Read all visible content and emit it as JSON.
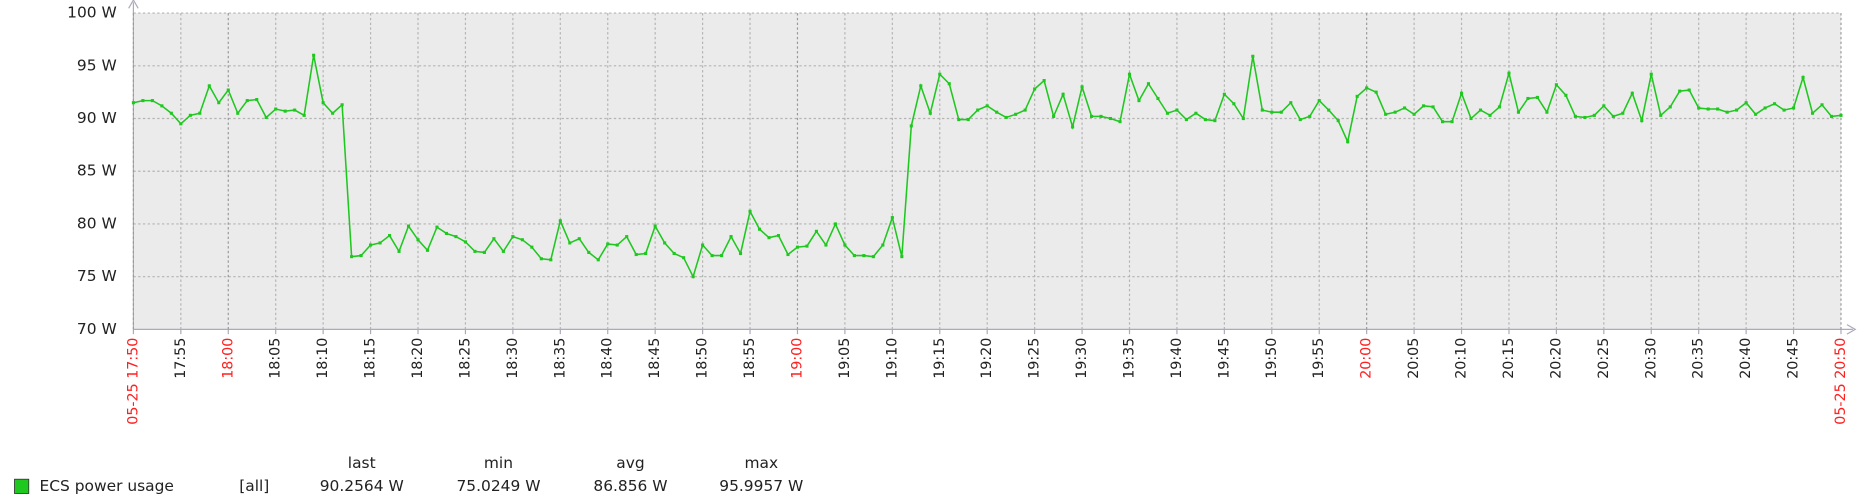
{
  "chart_data": {
    "type": "line",
    "x": [
      "17:50",
      "17:51",
      "17:52",
      "17:53",
      "17:54",
      "17:55",
      "17:56",
      "17:57",
      "17:58",
      "17:59",
      "18:00",
      "18:01",
      "18:02",
      "18:03",
      "18:04",
      "18:05",
      "18:06",
      "18:07",
      "18:08",
      "18:09",
      "18:10",
      "18:11",
      "18:12",
      "18:13",
      "18:14",
      "18:15",
      "18:16",
      "18:17",
      "18:18",
      "18:19",
      "18:20",
      "18:21",
      "18:22",
      "18:23",
      "18:24",
      "18:25",
      "18:26",
      "18:27",
      "18:28",
      "18:29",
      "18:30",
      "18:31",
      "18:32",
      "18:33",
      "18:34",
      "18:35",
      "18:36",
      "18:37",
      "18:38",
      "18:39",
      "18:40",
      "18:41",
      "18:42",
      "18:43",
      "18:44",
      "18:45",
      "18:46",
      "18:47",
      "18:48",
      "18:49",
      "18:50",
      "18:51",
      "18:52",
      "18:53",
      "18:54",
      "18:55",
      "18:56",
      "18:57",
      "18:58",
      "18:59",
      "19:00",
      "19:01",
      "19:02",
      "19:03",
      "19:04",
      "19:05",
      "19:06",
      "19:07",
      "19:08",
      "19:09",
      "19:10",
      "19:11",
      "19:12",
      "19:13",
      "19:14",
      "19:15",
      "19:16",
      "19:17",
      "19:18",
      "19:19",
      "19:20",
      "19:21",
      "19:22",
      "19:23",
      "19:24",
      "19:25",
      "19:26",
      "19:27",
      "19:28",
      "19:29",
      "19:30",
      "19:31",
      "19:32",
      "19:33",
      "19:34",
      "19:35",
      "19:36",
      "19:37",
      "19:38",
      "19:39",
      "19:40",
      "19:41",
      "19:42",
      "19:43",
      "19:44",
      "19:45",
      "19:46",
      "19:47",
      "19:48",
      "19:49",
      "19:50",
      "19:51",
      "19:52",
      "19:53",
      "19:54",
      "19:55",
      "19:56",
      "19:57",
      "19:58",
      "19:59",
      "20:00",
      "20:01",
      "20:02",
      "20:03",
      "20:04",
      "20:05",
      "20:06",
      "20:07",
      "20:08",
      "20:09",
      "20:10",
      "20:11",
      "20:12",
      "20:13",
      "20:14",
      "20:15",
      "20:16",
      "20:17",
      "20:18",
      "20:19",
      "20:20",
      "20:21",
      "20:22",
      "20:23",
      "20:24",
      "20:25",
      "20:26",
      "20:27",
      "20:28",
      "20:29",
      "20:30",
      "20:31",
      "20:32",
      "20:33",
      "20:34",
      "20:35",
      "20:36",
      "20:37",
      "20:38",
      "20:39",
      "20:40",
      "20:41",
      "20:42",
      "20:43",
      "20:44",
      "20:45",
      "20:46",
      "20:47",
      "20:48",
      "20:49",
      "20:50"
    ],
    "series": [
      {
        "name": "ECS power usage",
        "color": "#1ec81e",
        "values": [
          91.5,
          91.7,
          91.7,
          91.2,
          90.5,
          89.5,
          90.3,
          90.5,
          93.1,
          91.5,
          92.7,
          90.5,
          91.7,
          91.8,
          90.1,
          90.9,
          90.7,
          90.8,
          90.3,
          96.0,
          91.5,
          90.5,
          91.3,
          76.9,
          77.0,
          78.0,
          78.2,
          78.9,
          77.4,
          79.8,
          78.5,
          77.5,
          79.7,
          79.1,
          78.8,
          78.3,
          77.4,
          77.3,
          78.6,
          77.4,
          78.8,
          78.5,
          77.8,
          76.7,
          76.6,
          80.3,
          78.2,
          78.6,
          77.3,
          76.6,
          78.1,
          78.0,
          78.8,
          77.1,
          77.2,
          79.8,
          78.2,
          77.2,
          76.8,
          75.0,
          78.0,
          77.0,
          77.0,
          78.8,
          77.2,
          81.2,
          79.5,
          78.7,
          78.9,
          77.1,
          77.8,
          77.9,
          79.3,
          78.0,
          80.0,
          78.0,
          77.0,
          77.0,
          76.9,
          78.0,
          80.6,
          76.9,
          89.3,
          93.1,
          90.5,
          94.2,
          93.3,
          89.9,
          89.9,
          90.8,
          91.2,
          90.6,
          90.1,
          90.4,
          90.8,
          92.8,
          93.6,
          90.2,
          92.3,
          89.2,
          93.0,
          90.2,
          90.2,
          90.0,
          89.7,
          94.2,
          91.7,
          93.3,
          91.9,
          90.5,
          90.8,
          89.9,
          90.5,
          89.9,
          89.8,
          92.3,
          91.4,
          90.0,
          95.9,
          90.8,
          90.6,
          90.6,
          91.5,
          89.9,
          90.2,
          91.7,
          90.8,
          89.8,
          87.8,
          92.1,
          92.9,
          92.5,
          90.4,
          90.6,
          91.0,
          90.4,
          91.2,
          91.1,
          89.7,
          89.7,
          92.4,
          90.0,
          90.8,
          90.3,
          91.1,
          94.3,
          90.6,
          91.9,
          92.0,
          90.6,
          93.2,
          92.2,
          90.2,
          90.1,
          90.3,
          91.2,
          90.2,
          90.5,
          92.4,
          89.8,
          94.2,
          90.3,
          91.1,
          92.6,
          92.7,
          91.0,
          90.9,
          90.9,
          90.6,
          90.8,
          91.5,
          90.4,
          91.0,
          91.4,
          90.8,
          91.0,
          93.9,
          90.5,
          91.3,
          90.2,
          90.3
        ]
      }
    ],
    "xlim": [
      "17:50",
      "20:50"
    ],
    "xticks": [
      {
        "value": "17:50",
        "label": "05-25 17:50"
      },
      "17:55",
      "18:00",
      "18:05",
      "18:10",
      "18:15",
      "18:20",
      "18:25",
      "18:30",
      "18:35",
      "18:40",
      "18:45",
      "18:50",
      "18:55",
      "19:00",
      "19:05",
      "19:10",
      "19:15",
      "19:20",
      "19:25",
      "19:30",
      "19:35",
      "19:40",
      "19:45",
      "19:50",
      "19:55",
      "20:00",
      "20:05",
      "20:10",
      "20:15",
      "20:20",
      "20:25",
      "20:30",
      "20:35",
      "20:40",
      "20:45",
      {
        "value": "20:50",
        "label": "05-25 20:50"
      }
    ],
    "ylim": [
      70,
      100
    ],
    "yticks": [
      {
        "value": 70,
        "label": "70 W"
      },
      {
        "value": 75,
        "label": "75 W"
      },
      {
        "value": 80,
        "label": "80 W"
      },
      {
        "value": 85,
        "label": "85 W"
      },
      {
        "value": 90,
        "label": "90 W"
      },
      {
        "value": 95,
        "label": "95 W"
      },
      {
        "value": 100,
        "label": "100 W"
      }
    ],
    "grid": true,
    "major_tick_color": "#ff2020",
    "legend": {
      "columns": [
        "last",
        "min",
        "avg",
        "max"
      ],
      "rows": [
        {
          "name": "ECS power usage",
          "function": "[all]",
          "values": [
            "90.2564 W",
            "75.0249 W",
            "86.856 W",
            "95.9957 W"
          ]
        }
      ]
    }
  }
}
